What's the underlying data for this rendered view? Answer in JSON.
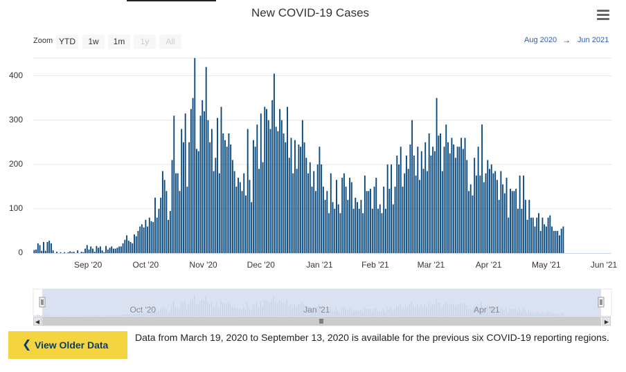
{
  "page": {
    "title": "New COVID-19 Cases",
    "zoom_label": "Zoom",
    "zoom_buttons": [
      {
        "label": "YTD",
        "enabled": true
      },
      {
        "label": "1w",
        "enabled": true
      },
      {
        "label": "1m",
        "enabled": true
      },
      {
        "label": "1y",
        "enabled": false
      },
      {
        "label": "All",
        "enabled": false
      }
    ],
    "range_from": "Aug 2020",
    "range_arrow": "→",
    "range_to": "Jun 2021",
    "menu_icon": "hamburger-menu-icon",
    "older_button_label": "View Older Data",
    "older_button_icon": "chevron-left-icon",
    "note": "Data from March 19, 2020 to September 13, 2020 is available for the previous six COVID-19 reporting regions.",
    "navigator_labels": [
      "Oct '20",
      "Jan '21",
      "Apr '21"
    ],
    "colors": {
      "bar": "#0b4a7e",
      "accent_yellow": "#f5d442",
      "navigator_mask": "#cdd8ee",
      "link": "#335cad"
    }
  },
  "chart_data": {
    "type": "bar",
    "title": "New COVID-19 Cases",
    "xlabel": "",
    "ylabel": "",
    "ylim": [
      0,
      440
    ],
    "yticks": [
      0,
      100,
      200,
      300,
      400
    ],
    "xticks": [
      "Sep '20",
      "Oct '20",
      "Nov '20",
      "Dec '20",
      "Jan '21",
      "Feb '21",
      "Mar '21",
      "Apr '21",
      "May '21",
      "Jun '21"
    ],
    "start_date": "2020-08-18",
    "end_date": "2021-06-19",
    "values": [
      7,
      8,
      22,
      18,
      5,
      25,
      5,
      25,
      28,
      22,
      6,
      0,
      3,
      0,
      2,
      0,
      2,
      0,
      2,
      4,
      2,
      3,
      0,
      6,
      0,
      3,
      2,
      10,
      18,
      8,
      15,
      10,
      3,
      16,
      12,
      15,
      6,
      2,
      16,
      8,
      12,
      15,
      10,
      10,
      12,
      15,
      15,
      22,
      30,
      40,
      28,
      25,
      22,
      42,
      38,
      50,
      60,
      65,
      58,
      75,
      60,
      80,
      72,
      70,
      125,
      80,
      100,
      125,
      185,
      165,
      140,
      75,
      95,
      210,
      310,
      180,
      180,
      140,
      280,
      250,
      315,
      150,
      250,
      325,
      350,
      440,
      235,
      230,
      310,
      345,
      320,
      420,
      300,
      250,
      280,
      185,
      215,
      305,
      180,
      330,
      270,
      255,
      240,
      270,
      245,
      210,
      185,
      150,
      170,
      160,
      140,
      180,
      130,
      280,
      165,
      115,
      255,
      240,
      290,
      190,
      315,
      205,
      330,
      325,
      300,
      280,
      345,
      405,
      285,
      275,
      325,
      300,
      270,
      250,
      330,
      215,
      260,
      180,
      255,
      190,
      245,
      240,
      300,
      250,
      215,
      180,
      205,
      150,
      185,
      140,
      200,
      240,
      200,
      150,
      120,
      140,
      90,
      180,
      115,
      100,
      165,
      110,
      90,
      170,
      180,
      150,
      120,
      170,
      160,
      100,
      125,
      115,
      100,
      120,
      90,
      175,
      140,
      140,
      145,
      100,
      150,
      170,
      100,
      110,
      90,
      150,
      100,
      200,
      145,
      200,
      110,
      150,
      220,
      200,
      240,
      150,
      180,
      220,
      190,
      245,
      300,
      220,
      175,
      240,
      165,
      230,
      190,
      250,
      185,
      270,
      220,
      240,
      230,
      350,
      265,
      270,
      185,
      240,
      290,
      250,
      225,
      260,
      245,
      215,
      240,
      240,
      260,
      235,
      260,
      210,
      140,
      155,
      130,
      215,
      175,
      240,
      175,
      290,
      160,
      180,
      210,
      190,
      200,
      180,
      185,
      165,
      120,
      185,
      155,
      135,
      170,
      80,
      145,
      140,
      140,
      145,
      100,
      175,
      100,
      175,
      120,
      75,
      120,
      80,
      80,
      60,
      80,
      90,
      50,
      80,
      65,
      60,
      80,
      85,
      60,
      50,
      50,
      50,
      40,
      55,
      60
    ]
  }
}
